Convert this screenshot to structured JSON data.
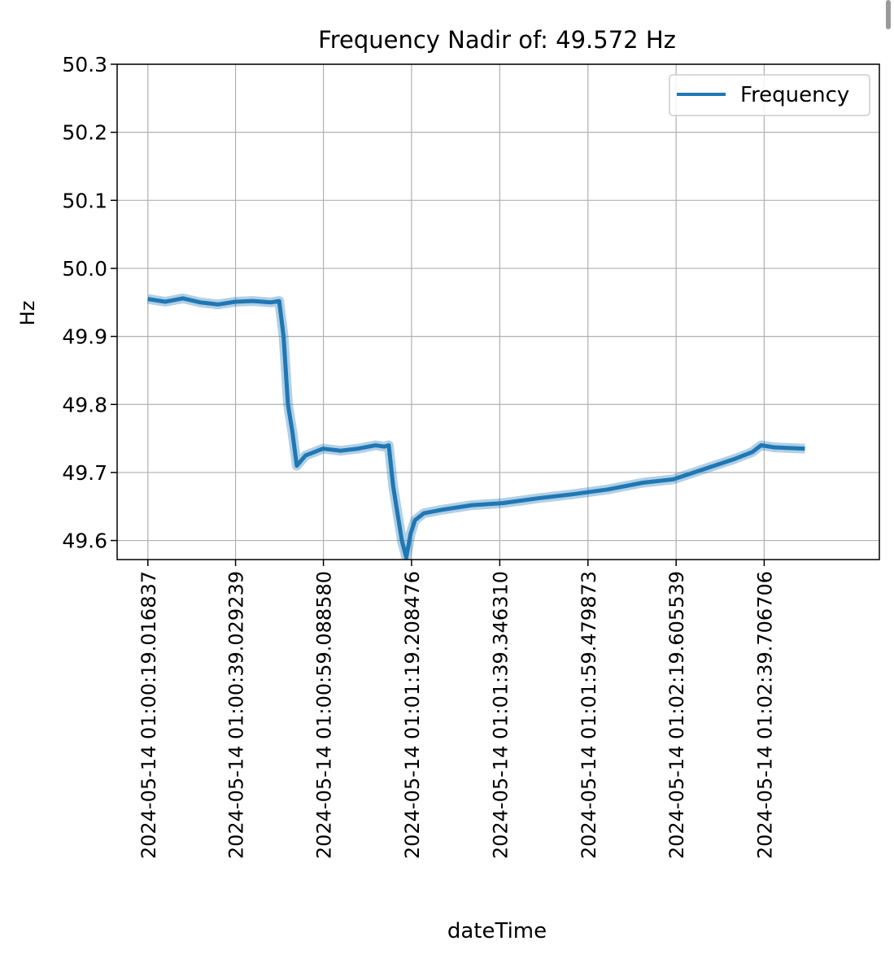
{
  "chart_data": {
    "type": "line",
    "title": "Frequency Nadir of: 49.572 Hz",
    "xlabel": "dateTime",
    "ylabel": "Hz",
    "ylim": [
      49.572,
      50.3
    ],
    "yticks": [
      "50.3",
      "50.2",
      "50.1",
      "50.0",
      "49.9",
      "49.8",
      "49.7",
      "49.6"
    ],
    "ytick_values": [
      50.3,
      50.2,
      50.1,
      50.0,
      49.9,
      49.8,
      49.7,
      49.6
    ],
    "xticks": [
      "2024-05-14 01:00:19.016837",
      "2024-05-14 01:00:39.029239",
      "2024-05-14 01:00:59.088580",
      "2024-05-14 01:01:19.208476",
      "2024-05-14 01:01:39.346310",
      "2024-05-14 01:01:59.479873",
      "2024-05-14 01:02:19.605539",
      "2024-05-14 01:02:39.706706"
    ],
    "xlim": [
      "2024-05-14 01:00:12.0",
      "2024-05-14 01:03:06.0"
    ],
    "grid": true,
    "legend": {
      "position": "top-right"
    },
    "series": [
      {
        "name": "Frequency",
        "color": "#1f77b4",
        "x": [
          "2024-05-14 01:00:19.0",
          "2024-05-14 01:00:23.0",
          "2024-05-14 01:00:27.0",
          "2024-05-14 01:00:31.0",
          "2024-05-14 01:00:35.0",
          "2024-05-14 01:00:39.0",
          "2024-05-14 01:00:43.0",
          "2024-05-14 01:00:47.0",
          "2024-05-14 01:00:49.0",
          "2024-05-14 01:00:50.0",
          "2024-05-14 01:00:51.0",
          "2024-05-14 01:00:52.0",
          "2024-05-14 01:00:53.0",
          "2024-05-14 01:00:55.0",
          "2024-05-14 01:00:59.0",
          "2024-05-14 01:01:03.0",
          "2024-05-14 01:01:07.0",
          "2024-05-14 01:01:11.0",
          "2024-05-14 01:01:13.0",
          "2024-05-14 01:01:14.0",
          "2024-05-14 01:01:15.0",
          "2024-05-14 01:01:16.0",
          "2024-05-14 01:01:17.0",
          "2024-05-14 01:01:18.0",
          "2024-05-14 01:01:19.0",
          "2024-05-14 01:01:20.0",
          "2024-05-14 01:01:22.0",
          "2024-05-14 01:01:26.0",
          "2024-05-14 01:01:33.0",
          "2024-05-14 01:01:40.0",
          "2024-05-14 01:01:48.0",
          "2024-05-14 01:01:56.0",
          "2024-05-14 01:02:04.0",
          "2024-05-14 01:02:12.0",
          "2024-05-14 01:02:19.0",
          "2024-05-14 01:02:26.0",
          "2024-05-14 01:02:33.0",
          "2024-05-14 01:02:37.0",
          "2024-05-14 01:02:39.0",
          "2024-05-14 01:02:42.0",
          "2024-05-14 01:02:45.0",
          "2024-05-14 01:02:49.0"
        ],
        "y": [
          49.955,
          49.951,
          49.956,
          49.95,
          49.947,
          49.951,
          49.952,
          49.95,
          49.952,
          49.9,
          49.8,
          49.76,
          49.71,
          49.725,
          49.735,
          49.732,
          49.735,
          49.74,
          49.738,
          49.74,
          49.68,
          49.64,
          49.6,
          49.575,
          49.61,
          49.63,
          49.64,
          49.645,
          49.652,
          49.655,
          49.662,
          49.668,
          49.675,
          49.685,
          49.69,
          49.705,
          49.72,
          49.73,
          49.74,
          49.737,
          49.736,
          49.735
        ]
      }
    ]
  }
}
